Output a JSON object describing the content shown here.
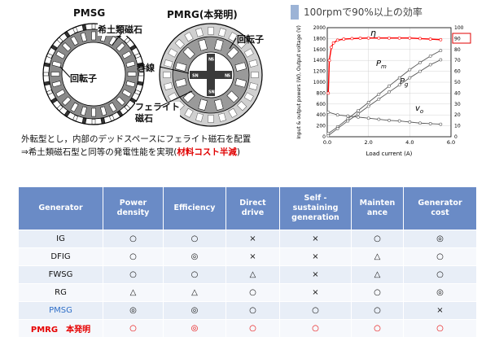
{
  "labels": {
    "pmsg": "PMSG",
    "pmrg": "PMRG(本発明)",
    "rare_earth": "希土類磁石",
    "rotor_left": "回転子",
    "rotor_right": "回転子",
    "winding": "巻線",
    "ferrite": "フェライト\n磁石",
    "ns_n": "N",
    "ns_s": "S"
  },
  "caption": {
    "line1": "外転型とし，内部のデッドスペースにフェライト磁石を配置",
    "line2_prefix": "⇒希土類磁石型と同等の発電性能を実現(",
    "line2_highlight": "材料コスト半減",
    "line2_suffix": ")"
  },
  "chart_heading": "100rpmで90%以上の効率",
  "chart_data": {
    "type": "line",
    "xlabel": "Load current (A)",
    "ylabel_left": "Input & output powers (W), Output voltage (V)",
    "ylabel_right": "",
    "xlim": [
      0,
      6.0
    ],
    "ylim_left": [
      0,
      2000
    ],
    "ylim_right": [
      0,
      100
    ],
    "x_ticks": [
      "0.0",
      "2.0",
      "4.0",
      "6.0"
    ],
    "y_left_ticks": [
      "0",
      "200",
      "400",
      "600",
      "800",
      "1000",
      "1200",
      "1400",
      "1600",
      "1800",
      "2000"
    ],
    "y_right_ticks": [
      "0",
      "10",
      "20",
      "30",
      "40",
      "50",
      "60",
      "70",
      "80",
      "90",
      "100"
    ],
    "highlight_tick": "90",
    "series": [
      {
        "name": "η",
        "axis": "right",
        "color": "#ff0000",
        "x": [
          0.05,
          0.1,
          0.2,
          0.3,
          0.5,
          0.8,
          1.2,
          1.6,
          2.0,
          2.5,
          3.0,
          3.5,
          4.0,
          4.5,
          5.0,
          5.5
        ],
        "y": [
          40,
          70,
          82,
          86,
          88.5,
          89.5,
          90,
          90.3,
          90.5,
          90.5,
          90.5,
          90.5,
          90.5,
          90,
          89.5,
          89
        ]
      },
      {
        "name": "Pm",
        "axis": "left",
        "color": "#555555",
        "x": [
          0.05,
          0.5,
          1.0,
          1.5,
          2.0,
          2.5,
          3.0,
          3.5,
          4.0,
          4.5,
          5.0,
          5.5
        ],
        "y": [
          60,
          180,
          330,
          480,
          630,
          780,
          930,
          1080,
          1230,
          1360,
          1480,
          1580
        ]
      },
      {
        "name": "Pg",
        "axis": "left",
        "color": "#555555",
        "x": [
          0.05,
          0.5,
          1.0,
          1.5,
          2.0,
          2.5,
          3.0,
          3.5,
          4.0,
          4.5,
          5.0,
          5.5
        ],
        "y": [
          20,
          150,
          290,
          420,
          560,
          690,
          820,
          950,
          1080,
          1200,
          1320,
          1410
        ]
      },
      {
        "name": "vo",
        "axis": "left",
        "color": "#555555",
        "x": [
          0.05,
          0.5,
          1.0,
          1.5,
          2.0,
          2.5,
          3.0,
          3.5,
          4.0,
          4.5,
          5.0,
          5.5
        ],
        "y": [
          450,
          400,
          380,
          360,
          340,
          320,
          300,
          290,
          270,
          250,
          240,
          230
        ]
      }
    ],
    "series_labels": {
      "eta": "η",
      "pm": "P",
      "pm_sub": "m",
      "pg": "P",
      "pg_sub": "g",
      "vo": "v",
      "vo_sub": "o"
    }
  },
  "table": {
    "headers": [
      "Generator",
      "Power\ndensity",
      "Efficiency",
      "Direct\ndrive",
      "Self -\nsustaining\ngeneration",
      "Mainten\nance",
      "Generator\ncost"
    ],
    "rows": [
      {
        "cells": [
          "IG",
          "○",
          "○",
          "×",
          "×",
          "○",
          "◎"
        ],
        "style": ""
      },
      {
        "cells": [
          "DFIG",
          "○",
          "◎",
          "×",
          "×",
          "△",
          "○"
        ],
        "style": ""
      },
      {
        "cells": [
          "FWSG",
          "○",
          "○",
          "△",
          "×",
          "△",
          "○"
        ],
        "style": ""
      },
      {
        "cells": [
          "RG",
          "△",
          "△",
          "○",
          "×",
          "○",
          "◎"
        ],
        "style": ""
      },
      {
        "cells": [
          "PMSG",
          "◎",
          "◎",
          "○",
          "○",
          "○",
          "×"
        ],
        "style": "blue"
      },
      {
        "cells": [
          "PMRG　本発明",
          "○",
          "◎",
          "○",
          "○",
          "○",
          "○"
        ],
        "style": "red"
      }
    ]
  }
}
